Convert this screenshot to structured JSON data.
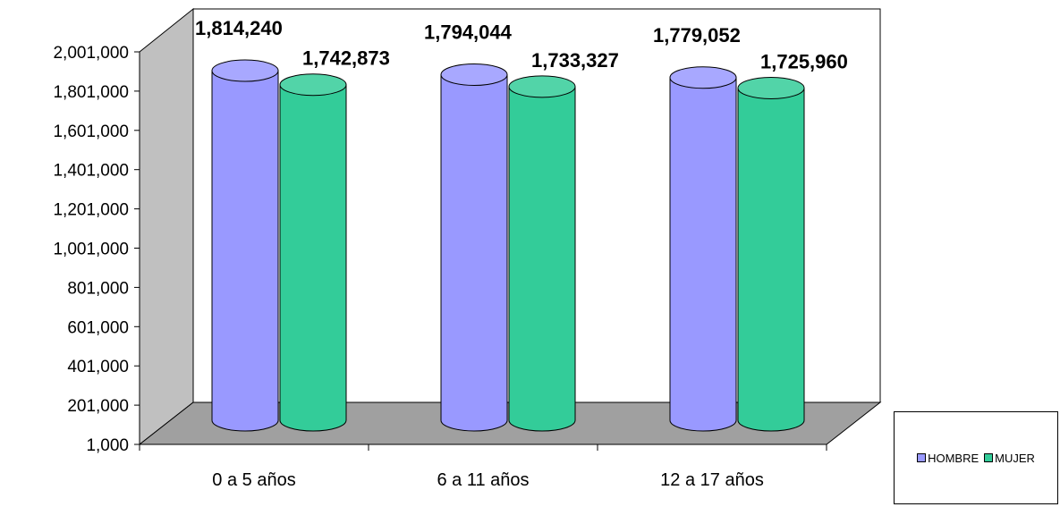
{
  "chart_data": {
    "type": "bar",
    "style": "3d-cylinder",
    "categories": [
      "0 a 5 años",
      "6 a 11 años",
      "12 a 17 años"
    ],
    "series": [
      {
        "name": "HOMBRE",
        "values": [
          1814240,
          1794044,
          1779052
        ],
        "labels": [
          "1,814,240",
          "1,794,044",
          "1,779,052"
        ],
        "color": "#9999ff"
      },
      {
        "name": "MUJER",
        "values": [
          1742873,
          1733327,
          1725960
        ],
        "labels": [
          "1,742,873",
          "1,733,327",
          "1,725,960"
        ],
        "color": "#33cc99"
      }
    ],
    "ylim": [
      1000,
      2001000
    ],
    "yticks": [
      "2,001,000",
      "1,801,000",
      "1,601,000",
      "1,401,000",
      "1,201,000",
      "1,001,000",
      "801,000",
      "601,000",
      "401,000",
      "201,000",
      "1,000"
    ],
    "ytick_values": [
      2001000,
      1801000,
      1601000,
      1401000,
      1201000,
      1001000,
      801000,
      601000,
      401000,
      201000,
      1000
    ],
    "grid": false,
    "legend_position": "bottom-right",
    "colors": {
      "wall": "#ffffff",
      "side_wall": "#c0c0c0",
      "floor": "#a0a0a0"
    }
  }
}
